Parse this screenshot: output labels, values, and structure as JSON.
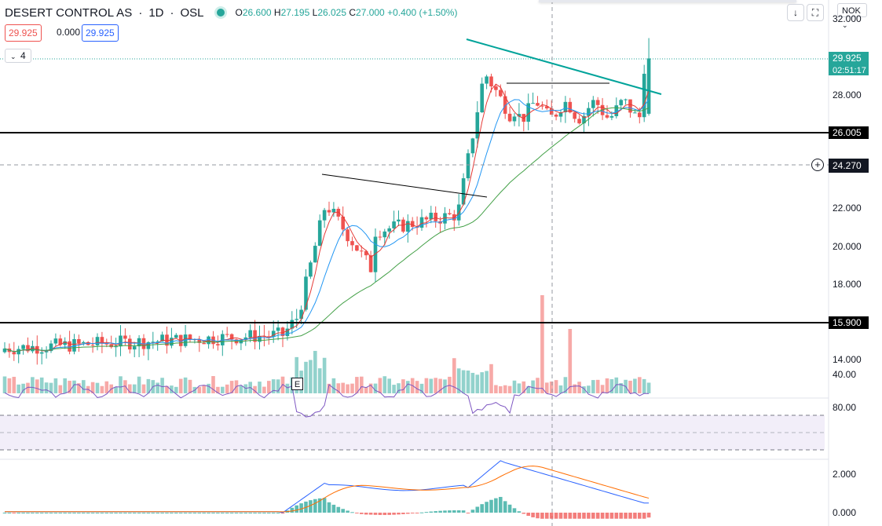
{
  "header": {
    "symbol": "DESERT CONTROL AS",
    "interval": "1D",
    "exchange": "OSL",
    "open_label": "O",
    "open": "26.600",
    "high_label": "H",
    "high": "27.195",
    "low_label": "L",
    "low": "26.025",
    "close_label": "C",
    "close": "27.000",
    "change": "+0.400 (+1.50%)"
  },
  "badges": {
    "left": "29.925",
    "middle": "0.000",
    "right": "29.925"
  },
  "indicator_toggle": {
    "chevron": "⌄",
    "count": "4"
  },
  "toolbar": {
    "download_icon": "↓",
    "fullscreen_icon": "⛶",
    "currency": "NOK",
    "currency_chevron": "⌄"
  },
  "price_axis": {
    "ticks": [
      {
        "v": 32,
        "label": "32.000"
      },
      {
        "v": 28,
        "label": "28.000"
      },
      {
        "v": 22,
        "label": "22.000"
      },
      {
        "v": 20,
        "label": "20.000"
      },
      {
        "v": 18,
        "label": "18.000"
      },
      {
        "v": 14,
        "label": "14.000"
      }
    ],
    "last_price": "29.925",
    "countdown": "02:51:17",
    "level_high": "26.005",
    "level_low": "15.900",
    "crosshair_price": "24.270",
    "crosshair_plus": "+"
  },
  "rsi_axis": [
    {
      "v": 80,
      "label": "80.00"
    },
    {
      "v": 40,
      "label": "40.00"
    }
  ],
  "macd_axis": [
    {
      "v": 2,
      "label": "2.000"
    },
    {
      "v": 0,
      "label": "0.000"
    }
  ],
  "earnings_mark": "E",
  "colors": {
    "up": "#26a69a",
    "down": "#ef5350",
    "ema_fast": "#e53935",
    "ema_mid": "#2196f3",
    "sma_slow": "#43a047",
    "rsi": "#7e57c2",
    "macd": "#2962ff",
    "signal": "#ff6d00",
    "trendline": "#00a39a"
  }
}
